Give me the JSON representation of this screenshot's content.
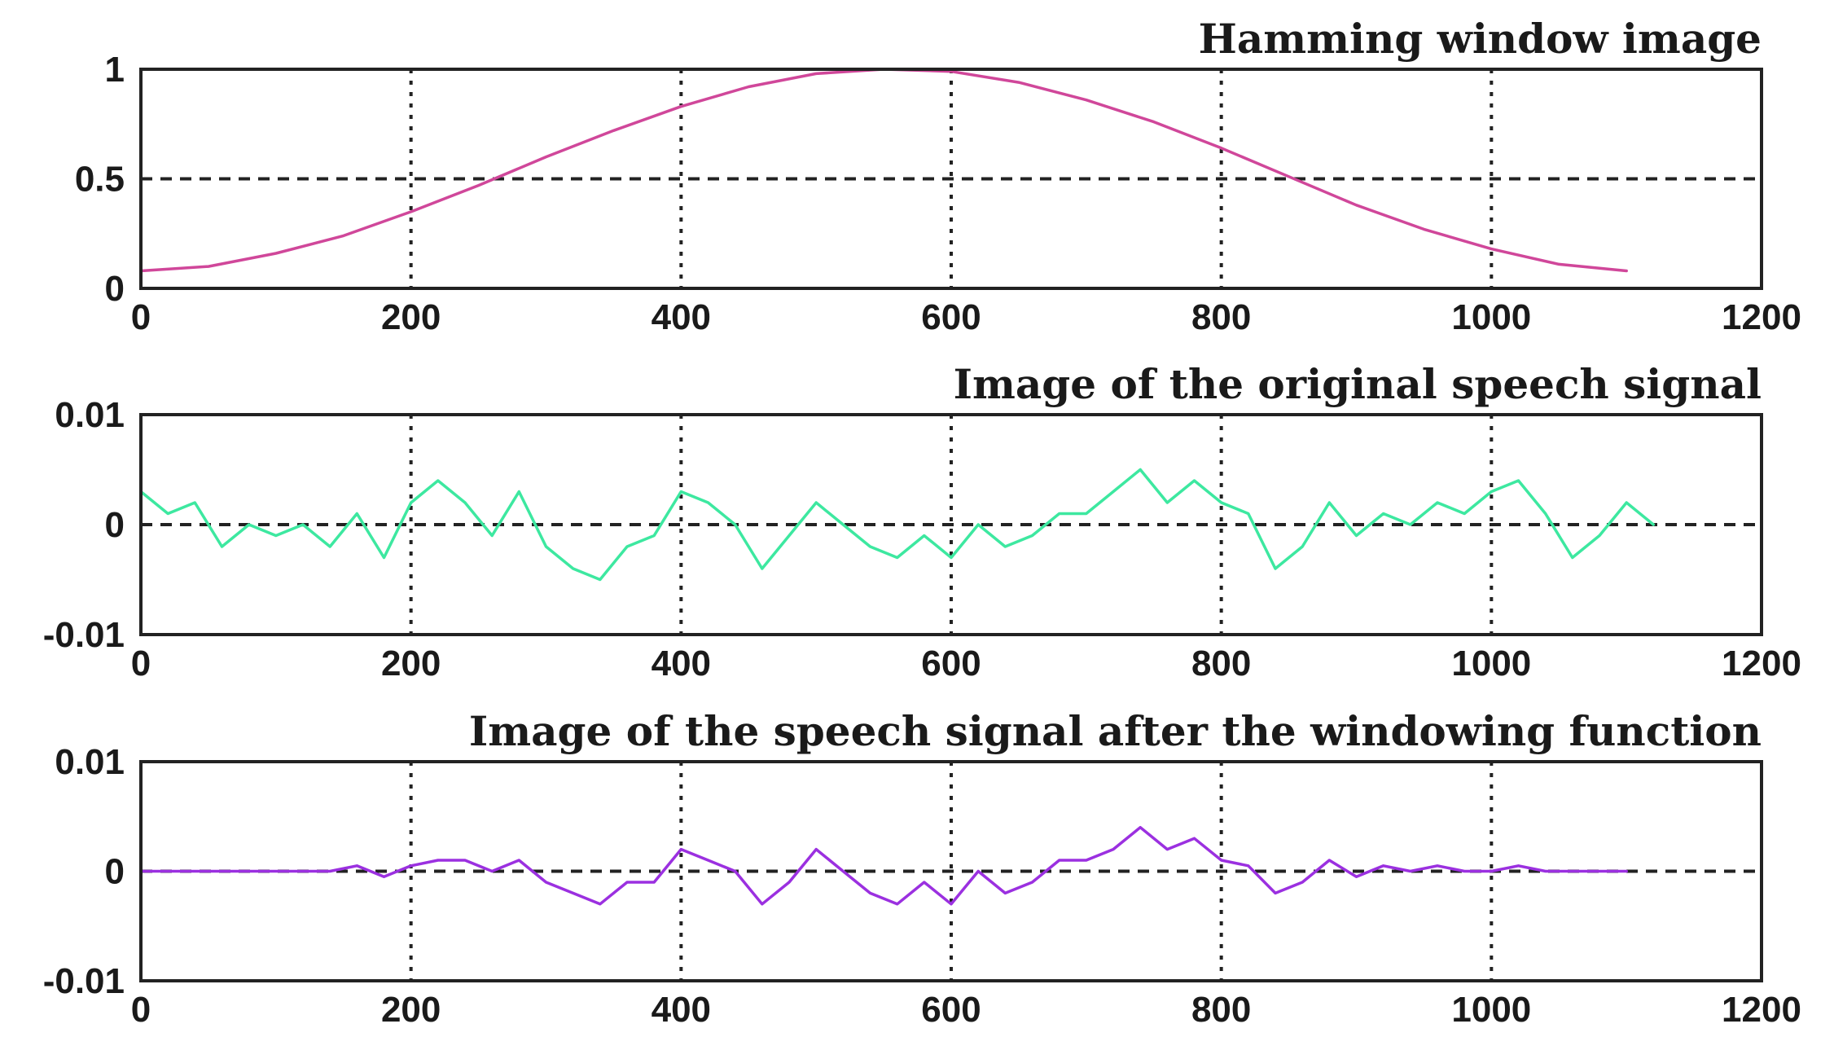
{
  "chart_data": [
    {
      "type": "line",
      "title": "Hamming window image",
      "xlabel": "",
      "ylabel": "",
      "xlim": [
        0,
        1200
      ],
      "ylim": [
        0,
        1
      ],
      "x_ticks": [
        0,
        200,
        400,
        600,
        800,
        1000,
        1200
      ],
      "y_ticks": [
        0,
        0.5,
        1
      ],
      "x_tick_labels": [
        "0",
        "200",
        "400",
        "600",
        "800",
        "1000",
        "1200"
      ],
      "y_tick_labels": [
        "0",
        "0.5",
        "1"
      ],
      "grid": true,
      "color": "#d0479a",
      "series": [
        {
          "x": [
            0,
            50,
            100,
            150,
            200,
            250,
            300,
            350,
            400,
            450,
            500,
            550,
            600,
            650,
            700,
            750,
            800,
            850,
            900,
            950,
            1000,
            1050,
            1100
          ],
          "values": [
            0.08,
            0.1,
            0.16,
            0.24,
            0.35,
            0.47,
            0.6,
            0.72,
            0.83,
            0.92,
            0.98,
            1.0,
            0.99,
            0.94,
            0.86,
            0.76,
            0.64,
            0.51,
            0.38,
            0.27,
            0.18,
            0.11,
            0.08
          ]
        }
      ]
    },
    {
      "type": "line",
      "title": "Image of the original speech signal",
      "xlabel": "",
      "ylabel": "",
      "xlim": [
        0,
        1200
      ],
      "ylim": [
        -0.01,
        0.01
      ],
      "x_ticks": [
        0,
        200,
        400,
        600,
        800,
        1000,
        1200
      ],
      "y_ticks": [
        -0.01,
        0,
        0.01
      ],
      "x_tick_labels": [
        "0",
        "200",
        "400",
        "600",
        "800",
        "1000",
        "1200"
      ],
      "y_tick_labels": [
        "-0.01",
        "0",
        "0.01"
      ],
      "grid": true,
      "color": "#3de8a0",
      "series": [
        {
          "x": [
            0,
            20,
            40,
            60,
            80,
            100,
            120,
            140,
            160,
            180,
            200,
            220,
            240,
            260,
            280,
            300,
            320,
            340,
            360,
            380,
            400,
            420,
            440,
            460,
            480,
            500,
            520,
            540,
            560,
            580,
            600,
            620,
            640,
            660,
            680,
            700,
            720,
            740,
            760,
            780,
            800,
            820,
            840,
            860,
            880,
            900,
            920,
            940,
            960,
            980,
            1000,
            1020,
            1040,
            1060,
            1080,
            1100,
            1120
          ],
          "values": [
            0.003,
            0.001,
            0.002,
            -0.002,
            0.0,
            -0.001,
            0.0,
            -0.002,
            0.001,
            -0.003,
            0.002,
            0.004,
            0.002,
            -0.001,
            0.003,
            -0.002,
            -0.004,
            -0.005,
            -0.002,
            -0.001,
            0.003,
            0.002,
            0.0,
            -0.004,
            -0.001,
            0.002,
            0.0,
            -0.002,
            -0.003,
            -0.001,
            -0.003,
            0.0,
            -0.002,
            -0.001,
            0.001,
            0.001,
            0.003,
            0.005,
            0.002,
            0.004,
            0.002,
            0.001,
            -0.004,
            -0.002,
            0.002,
            -0.001,
            0.001,
            0.0,
            0.002,
            0.001,
            0.003,
            0.004,
            0.001,
            -0.003,
            -0.001,
            0.002,
            0.0
          ]
        }
      ]
    },
    {
      "type": "line",
      "title": "Image of the speech signal after the windowing function",
      "xlabel": "",
      "ylabel": "",
      "xlim": [
        0,
        1200
      ],
      "ylim": [
        -0.01,
        0.01
      ],
      "x_ticks": [
        0,
        200,
        400,
        600,
        800,
        1000,
        1200
      ],
      "y_ticks": [
        -0.01,
        0,
        0.01
      ],
      "x_tick_labels": [
        "0",
        "200",
        "400",
        "600",
        "800",
        "1000",
        "1200"
      ],
      "y_tick_labels": [
        "-0.01",
        "0",
        "0.01"
      ],
      "grid": true,
      "color": "#9b30e0",
      "series": [
        {
          "x": [
            0,
            20,
            40,
            60,
            80,
            100,
            120,
            140,
            160,
            180,
            200,
            220,
            240,
            260,
            280,
            300,
            320,
            340,
            360,
            380,
            400,
            420,
            440,
            460,
            480,
            500,
            520,
            540,
            560,
            580,
            600,
            620,
            640,
            660,
            680,
            700,
            720,
            740,
            760,
            780,
            800,
            820,
            840,
            860,
            880,
            900,
            920,
            940,
            960,
            980,
            1000,
            1020,
            1040,
            1060,
            1080,
            1100
          ],
          "values": [
            0.0,
            0.0,
            0.0,
            0.0,
            0.0,
            0.0,
            0.0,
            0.0,
            0.0005,
            -0.0005,
            0.0005,
            0.001,
            0.001,
            0.0,
            0.001,
            -0.001,
            -0.002,
            -0.003,
            -0.001,
            -0.001,
            0.002,
            0.001,
            0.0,
            -0.003,
            -0.001,
            0.002,
            0.0,
            -0.002,
            -0.003,
            -0.001,
            -0.003,
            0.0,
            -0.002,
            -0.001,
            0.001,
            0.001,
            0.002,
            0.004,
            0.002,
            0.003,
            0.001,
            0.0005,
            -0.002,
            -0.001,
            0.001,
            -0.0005,
            0.0005,
            0.0,
            0.0005,
            0.0,
            0.0,
            0.0005,
            0.0,
            0.0,
            0.0,
            0.0
          ]
        }
      ]
    }
  ]
}
